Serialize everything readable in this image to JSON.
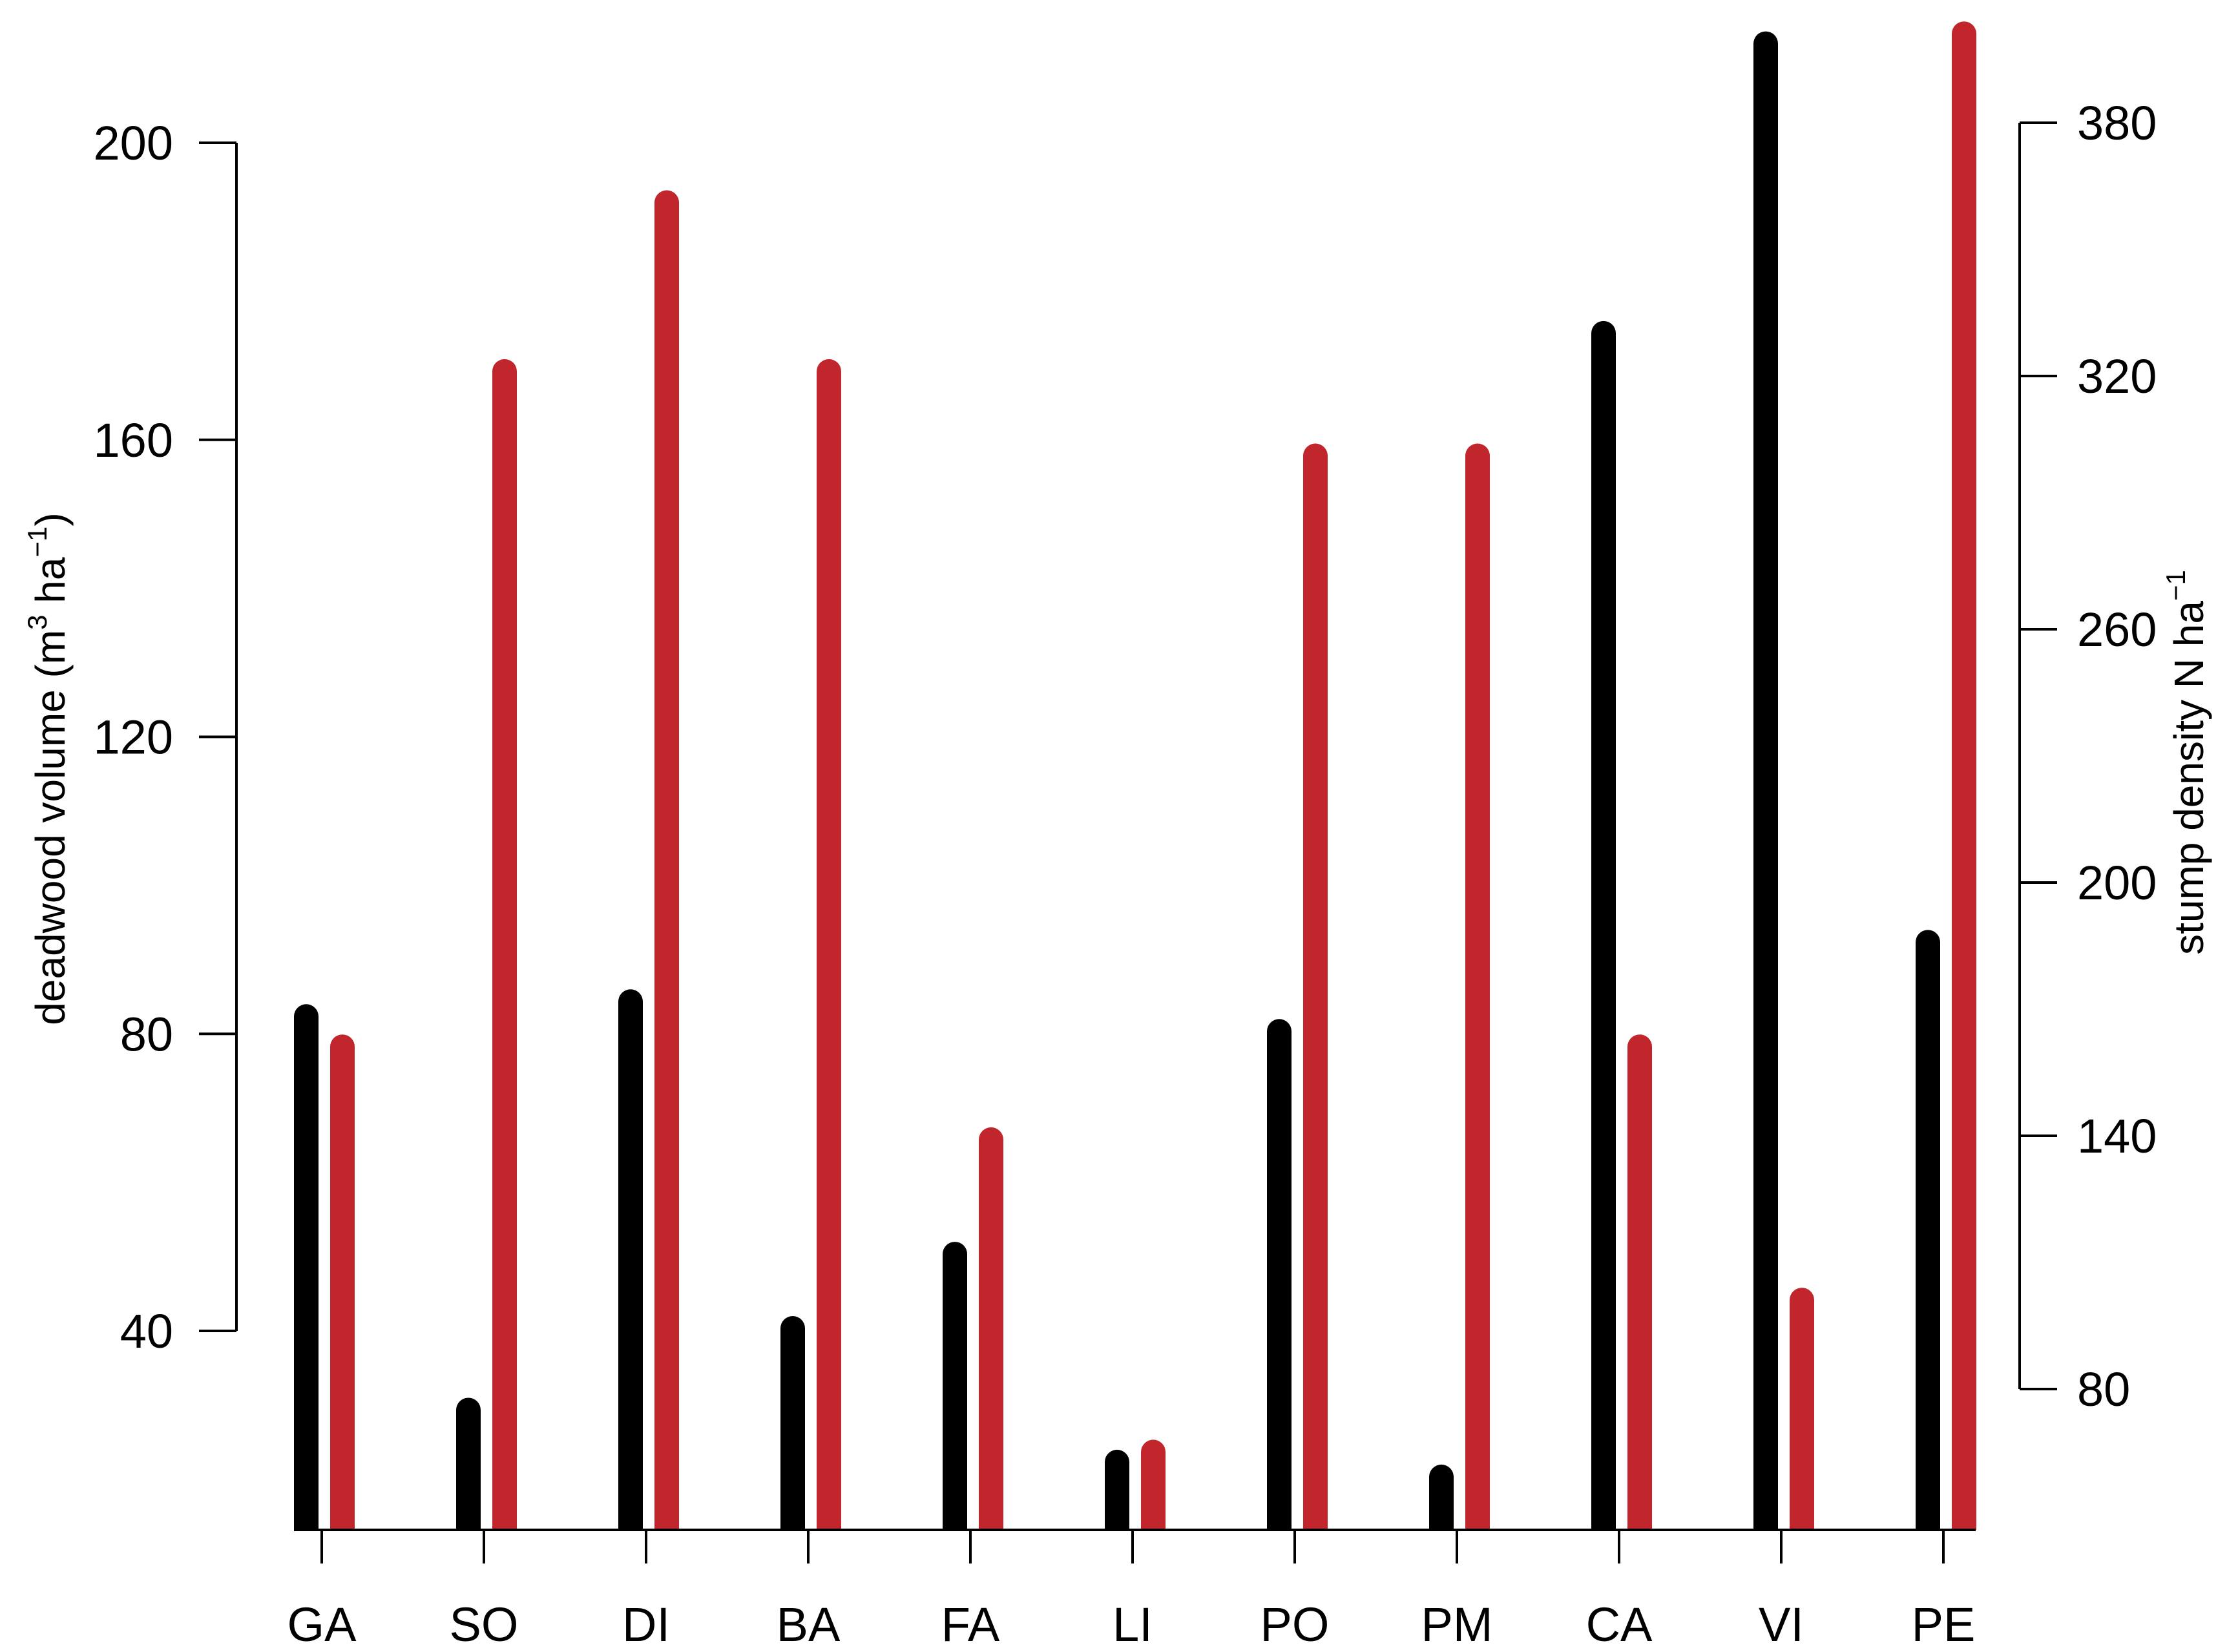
{
  "chart_data": {
    "type": "bar",
    "categories": [
      "GA",
      "SO",
      "DI",
      "BA",
      "FA",
      "LI",
      "PO",
      "PM",
      "CA",
      "VI",
      "PE"
    ],
    "series": [
      {
        "axis": "left",
        "color": "#000000",
        "values": [
          84,
          31,
          86,
          42,
          52,
          24,
          82,
          22,
          176,
          215,
          94
        ]
      },
      {
        "axis": "right",
        "color": "#C0262B",
        "values": [
          164,
          324,
          364,
          324,
          142,
          68,
          304,
          304,
          164,
          104,
          404
        ]
      }
    ],
    "y_left": {
      "label_prefix": "deadwood volume  (m",
      "label_sup1": "3",
      "label_mid": " ha",
      "label_sup2": "−1",
      "label_suffix": ")",
      "ticks": [
        "40",
        "80",
        "120",
        "160",
        "200"
      ],
      "tick_values": [
        40,
        80,
        120,
        160,
        200
      ],
      "range": [
        13,
        215
      ]
    },
    "y_right": {
      "label_prefix": "stump density  N ha",
      "label_sup": "−1",
      "ticks": [
        "80",
        "140",
        "200",
        "260",
        "320",
        "380"
      ],
      "tick_values": [
        80,
        140,
        200,
        260,
        320,
        380
      ],
      "range": [
        80,
        380
      ]
    },
    "grid": false,
    "legend": "none"
  }
}
